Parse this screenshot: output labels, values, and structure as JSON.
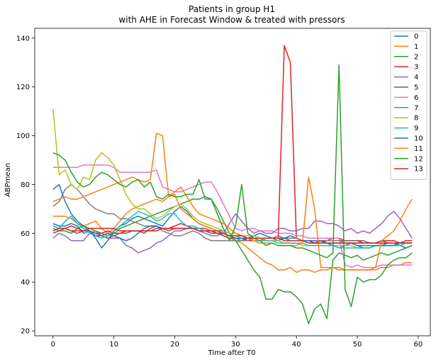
{
  "chart_data": {
    "type": "line",
    "title_lines": [
      "Patients in group H1",
      "with AHE in Forecast Window & treated with pressors"
    ],
    "xlabel": "Time after T0",
    "ylabel": "ABPmean",
    "xlim": [
      -3,
      62
    ],
    "ylim": [
      18,
      144
    ],
    "xticks": [
      0,
      10,
      20,
      30,
      40,
      50,
      60
    ],
    "yticks": [
      20,
      40,
      60,
      80,
      100,
      120,
      140
    ],
    "legend_position": "top-right",
    "colors": [
      "#1f77b4",
      "#ff7f0e",
      "#2ca02c",
      "#d62728",
      "#9467bd",
      "#8c564b",
      "#e377c2",
      "#7f7f7f",
      "#bcbd22",
      "#17becf",
      "#1f77b4",
      "#ff7f0e",
      "#2ca02c",
      "#d62728"
    ],
    "x": [
      0,
      1,
      2,
      3,
      4,
      5,
      6,
      7,
      8,
      9,
      10,
      11,
      12,
      13,
      14,
      15,
      16,
      17,
      18,
      19,
      20,
      21,
      22,
      23,
      24,
      25,
      26,
      27,
      28,
      29,
      30,
      31,
      32,
      33,
      34,
      35,
      36,
      37,
      38,
      39,
      40,
      41,
      42,
      43,
      44,
      45,
      46,
      47,
      48,
      49,
      50,
      51,
      52,
      53,
      54,
      55,
      56,
      57,
      58,
      59
    ],
    "series": [
      {
        "name": "0",
        "values": [
          64,
          63,
          63,
          64,
          63,
          60,
          61,
          58,
          54,
          57,
          61,
          63,
          64,
          66,
          67,
          66,
          65,
          64,
          63,
          66,
          69,
          71,
          69,
          66,
          64,
          63,
          62,
          61,
          60,
          59,
          58,
          57,
          58,
          59,
          60,
          59,
          58,
          57,
          58,
          59,
          58,
          57,
          56,
          56,
          57,
          56,
          55,
          54,
          55,
          56,
          55,
          54,
          54,
          55,
          55,
          56,
          56,
          55,
          54,
          55
        ]
      },
      {
        "name": "1",
        "values": [
          67,
          67,
          67,
          66,
          64,
          63,
          64,
          65,
          62,
          60,
          62,
          65,
          68,
          70,
          71,
          72,
          73,
          74,
          73,
          75,
          76,
          70,
          68,
          66,
          64,
          63,
          62,
          61,
          59,
          58,
          57,
          56,
          54,
          52,
          50,
          48,
          47,
          45,
          45,
          46,
          44,
          45,
          45,
          44,
          45,
          45,
          46,
          46,
          45,
          45,
          45,
          45,
          45,
          45,
          46,
          46,
          47,
          47,
          48,
          48
        ]
      },
      {
        "name": "2",
        "values": [
          62,
          61,
          61,
          60,
          62,
          63,
          62,
          61,
          60,
          59,
          60,
          62,
          63,
          64,
          65,
          66,
          67,
          68,
          69,
          70,
          71,
          72,
          73,
          74,
          74,
          75,
          74,
          70,
          65,
          60,
          57,
          53,
          49,
          45,
          42,
          33,
          33,
          37,
          36,
          36,
          34,
          31,
          23,
          29,
          31,
          25,
          49,
          52,
          51,
          50,
          51,
          49,
          50,
          51,
          52,
          51,
          52,
          53,
          54,
          55
        ]
      },
      {
        "name": "3",
        "values": [
          63,
          62,
          62,
          63,
          62,
          61,
          61,
          60,
          60,
          61,
          60,
          60,
          61,
          61,
          61,
          60,
          62,
          63,
          62,
          62,
          63,
          64,
          63,
          62,
          61,
          61,
          60,
          60,
          59,
          58,
          58,
          58,
          57,
          57,
          57,
          58,
          58,
          58,
          137,
          130,
          58,
          57,
          57,
          56,
          57,
          57,
          58,
          58,
          57,
          57,
          57,
          56,
          56,
          56,
          57,
          57,
          57,
          56,
          57,
          57
        ]
      },
      {
        "name": "4",
        "values": [
          58,
          60,
          59,
          57,
          57,
          57,
          60,
          61,
          59,
          58,
          58,
          58,
          55,
          54,
          52,
          53,
          54,
          56,
          57,
          59,
          61,
          61,
          62,
          62,
          61,
          60,
          59,
          59,
          60,
          64,
          68,
          65,
          62,
          60,
          61,
          60,
          60,
          62,
          62,
          61,
          61,
          62,
          62,
          65,
          65,
          64,
          64,
          63,
          61,
          62,
          60,
          61,
          60,
          62,
          64,
          67,
          69,
          66,
          62,
          58
        ]
      },
      {
        "name": "5",
        "values": [
          60,
          61,
          62,
          61,
          60,
          61,
          61,
          60,
          59,
          58,
          59,
          60,
          60,
          61,
          61,
          61,
          61,
          62,
          62,
          61,
          62,
          62,
          62,
          62,
          62,
          62,
          61,
          61,
          61,
          60,
          60,
          59,
          59,
          59,
          58,
          58,
          58,
          58,
          58,
          58,
          58,
          57,
          57,
          57,
          57,
          57,
          57,
          57,
          57,
          57,
          57,
          57,
          56,
          56,
          57,
          56,
          56,
          56,
          56,
          56
        ]
      },
      {
        "name": "6",
        "values": [
          87,
          87,
          87,
          87,
          87,
          88,
          88,
          88,
          88,
          88,
          87,
          85,
          85,
          85,
          85,
          85,
          85,
          86,
          79,
          78,
          77,
          77,
          78,
          79,
          80,
          81,
          81,
          77,
          72,
          67,
          62,
          61,
          62,
          62,
          61,
          61,
          61,
          60,
          60,
          60,
          59,
          59,
          58,
          58,
          58,
          58,
          58,
          58,
          47,
          46,
          47,
          46,
          46,
          46,
          47,
          47,
          47,
          47,
          47,
          47
        ]
      },
      {
        "name": "7",
        "values": [
          71,
          73,
          78,
          80,
          78,
          75,
          72,
          70,
          69,
          68,
          68,
          66,
          66,
          65,
          64,
          63,
          63,
          63,
          61,
          60,
          59,
          59,
          60,
          61,
          60,
          58,
          57,
          57,
          57,
          57,
          57,
          57,
          57,
          58,
          58,
          58,
          58,
          59,
          58,
          58,
          58,
          57,
          56,
          56,
          56,
          57,
          57,
          57,
          56,
          56,
          56,
          56,
          56,
          56,
          56,
          56,
          56,
          56,
          56,
          56
        ]
      },
      {
        "name": "8",
        "values": [
          111,
          84,
          86,
          80,
          78,
          83,
          82,
          90,
          93,
          91,
          88,
          82,
          76,
          72,
          70,
          70,
          68,
          66,
          67,
          69,
          71,
          72,
          70,
          67,
          65,
          64,
          63,
          62,
          61,
          60,
          60,
          59,
          59,
          59,
          58,
          57,
          57,
          57,
          56,
          56,
          56,
          55,
          55,
          55,
          55,
          55,
          55,
          55,
          55,
          55,
          54,
          54,
          54,
          55,
          55,
          55,
          55,
          55,
          56,
          56
        ]
      },
      {
        "name": "9",
        "values": [
          63,
          62,
          65,
          67,
          64,
          62,
          60,
          59,
          58,
          59,
          61,
          63,
          65,
          67,
          69,
          68,
          67,
          65,
          66,
          68,
          68,
          65,
          63,
          63,
          62,
          61,
          61,
          60,
          60,
          59,
          59,
          58,
          58,
          57,
          57,
          57,
          57,
          56,
          56,
          56,
          56,
          56,
          55,
          55,
          55,
          55,
          55,
          54,
          54,
          54,
          54,
          54,
          54,
          55,
          55,
          55,
          55,
          55,
          56,
          56
        ]
      },
      {
        "name": "10",
        "values": [
          78,
          80,
          73,
          68,
          65,
          63,
          61,
          59,
          59,
          60,
          59,
          58,
          57,
          58,
          60,
          62,
          63,
          63,
          62,
          62,
          62,
          62,
          62,
          62,
          61,
          61,
          61,
          60,
          60,
          59,
          58,
          58,
          58,
          58,
          58,
          58,
          58,
          58,
          58,
          57,
          57,
          57,
          57,
          57,
          57,
          56,
          56,
          56,
          56,
          56,
          55,
          55,
          55,
          55,
          55,
          55,
          55,
          56,
          56,
          56
        ]
      },
      {
        "name": "11",
        "values": [
          73,
          74,
          75,
          74,
          74,
          75,
          76,
          77,
          78,
          79,
          80,
          81,
          82,
          83,
          82,
          81,
          82,
          101,
          100,
          75,
          77,
          79,
          75,
          71,
          68,
          67,
          66,
          65,
          64,
          62,
          60,
          59,
          58,
          57,
          56,
          56,
          56,
          55,
          55,
          55,
          55,
          56,
          83,
          70,
          46,
          46,
          46,
          45,
          45,
          45,
          45,
          45,
          45,
          46,
          57,
          59,
          61,
          65,
          70,
          74
        ]
      },
      {
        "name": "12",
        "values": [
          93,
          92,
          90,
          85,
          81,
          79,
          80,
          83,
          85,
          84,
          82,
          80,
          79,
          81,
          82,
          79,
          81,
          75,
          74,
          76,
          75,
          75,
          76,
          76,
          82,
          74,
          74,
          68,
          62,
          57,
          63,
          80,
          60,
          58,
          57,
          55,
          56,
          55,
          55,
          55,
          54,
          54,
          53,
          52,
          51,
          50,
          52,
          129,
          37,
          30,
          42,
          40,
          41,
          41,
          43,
          47,
          49,
          50,
          50,
          52
        ]
      },
      {
        "name": "13",
        "values": [
          61,
          62,
          62,
          61,
          61,
          61,
          62,
          62,
          62,
          62,
          62,
          61,
          61,
          61,
          61,
          61,
          61,
          61,
          62,
          62,
          62,
          62,
          62,
          62,
          61,
          61,
          61,
          60,
          60,
          59,
          59,
          59,
          58,
          58,
          58,
          58,
          58,
          58,
          57,
          57,
          57,
          57,
          56,
          56,
          56,
          56,
          56,
          56,
          56,
          56,
          56,
          56,
          56,
          56,
          56,
          56,
          56,
          56,
          56,
          56
        ]
      }
    ]
  }
}
